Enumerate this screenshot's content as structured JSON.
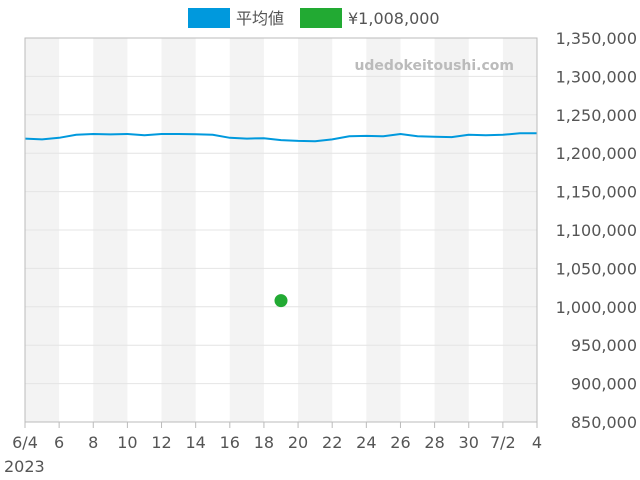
{
  "chart_data": {
    "type": "line",
    "watermark": "udedokeitoushi.com",
    "legend_position": "top-center",
    "series": [
      {
        "name": "平均値",
        "color": "#0099dd",
        "kind": "line",
        "points": [
          {
            "x": "2023-06-04",
            "y": 1219000
          },
          {
            "x": "2023-06-05",
            "y": 1218000
          },
          {
            "x": "2023-06-06",
            "y": 1220000
          },
          {
            "x": "2023-06-07",
            "y": 1224000
          },
          {
            "x": "2023-06-08",
            "y": 1225000
          },
          {
            "x": "2023-06-09",
            "y": 1224500
          },
          {
            "x": "2023-06-10",
            "y": 1225000
          },
          {
            "x": "2023-06-11",
            "y": 1223500
          },
          {
            "x": "2023-06-12",
            "y": 1225000
          },
          {
            "x": "2023-06-13",
            "y": 1225000
          },
          {
            "x": "2023-06-14",
            "y": 1224800
          },
          {
            "x": "2023-06-15",
            "y": 1224000
          },
          {
            "x": "2023-06-16",
            "y": 1220000
          },
          {
            "x": "2023-06-17",
            "y": 1219000
          },
          {
            "x": "2023-06-18",
            "y": 1219500
          },
          {
            "x": "2023-06-19",
            "y": 1217000
          },
          {
            "x": "2023-06-20",
            "y": 1216000
          },
          {
            "x": "2023-06-21",
            "y": 1215500
          },
          {
            "x": "2023-06-22",
            "y": 1218000
          },
          {
            "x": "2023-06-23",
            "y": 1222000
          },
          {
            "x": "2023-06-24",
            "y": 1222500
          },
          {
            "x": "2023-06-25",
            "y": 1222000
          },
          {
            "x": "2023-06-26",
            "y": 1225000
          },
          {
            "x": "2023-06-27",
            "y": 1222000
          },
          {
            "x": "2023-06-28",
            "y": 1221500
          },
          {
            "x": "2023-06-29",
            "y": 1221000
          },
          {
            "x": "2023-06-30",
            "y": 1224000
          },
          {
            "x": "2023-07-01",
            "y": 1223500
          },
          {
            "x": "2023-07-02",
            "y": 1224000
          },
          {
            "x": "2023-07-03",
            "y": 1226000
          },
          {
            "x": "2023-07-04",
            "y": 1226000
          }
        ]
      },
      {
        "name": "¥1,008,000",
        "color": "#22aa33",
        "kind": "scatter",
        "points": [
          {
            "x": "2023-06-19",
            "y": 1008000
          }
        ]
      }
    ],
    "x_range": [
      "2023-06-04",
      "2023-07-04"
    ],
    "x_ticks": [
      {
        "x": "2023-06-04",
        "label": "6/4",
        "sublabel": "2023"
      },
      {
        "x": "2023-06-06",
        "label": "6"
      },
      {
        "x": "2023-06-08",
        "label": "8"
      },
      {
        "x": "2023-06-10",
        "label": "10"
      },
      {
        "x": "2023-06-12",
        "label": "12"
      },
      {
        "x": "2023-06-14",
        "label": "14"
      },
      {
        "x": "2023-06-16",
        "label": "16"
      },
      {
        "x": "2023-06-18",
        "label": "18"
      },
      {
        "x": "2023-06-20",
        "label": "20"
      },
      {
        "x": "2023-06-22",
        "label": "22"
      },
      {
        "x": "2023-06-24",
        "label": "24"
      },
      {
        "x": "2023-06-26",
        "label": "26"
      },
      {
        "x": "2023-06-28",
        "label": "28"
      },
      {
        "x": "2023-06-30",
        "label": "30"
      },
      {
        "x": "2023-07-02",
        "label": "7/2"
      },
      {
        "x": "2023-07-04",
        "label": "4"
      }
    ],
    "ylim": [
      850000,
      1350000
    ],
    "y_ticks": [
      {
        "value": 850000,
        "label": "850,000"
      },
      {
        "value": 900000,
        "label": "900,000"
      },
      {
        "value": 950000,
        "label": "950,000"
      },
      {
        "value": 1000000,
        "label": "1,000,000"
      },
      {
        "value": 1050000,
        "label": "1,050,000"
      },
      {
        "value": 1100000,
        "label": "1,100,000"
      },
      {
        "value": 1150000,
        "label": "1,150,000"
      },
      {
        "value": 1200000,
        "label": "1,200,000"
      },
      {
        "value": 1250000,
        "label": "1,250,000"
      },
      {
        "value": 1300000,
        "label": "1,300,000"
      },
      {
        "value": 1350000,
        "label": "1,350,000"
      }
    ],
    "grid": true,
    "alternating_band_color": "#f3f3f3",
    "grid_color": "#e4e4e4",
    "axis_color": "#bbbbbb"
  }
}
